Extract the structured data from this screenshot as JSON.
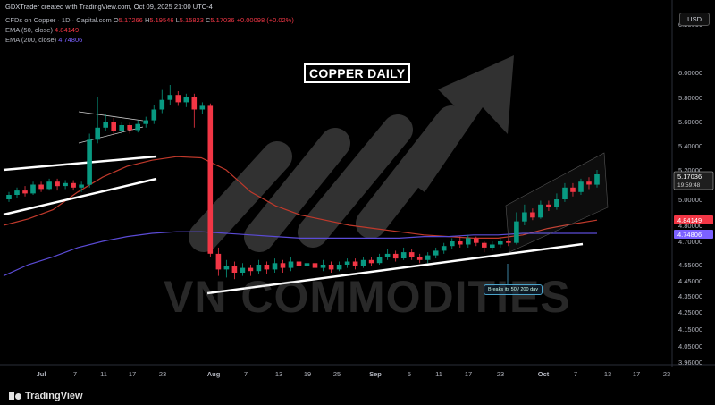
{
  "header": {
    "credit": "GDXTrader created with TradingView.com, Oct 09, 2025 21:00 UTC-4",
    "instrument": "CFDs on Copper · 1D · Capital.com",
    "ohlc": {
      "o_label": "O",
      "o": "5.17266",
      "h_label": "H",
      "h": "5.19546",
      "l_label": "L",
      "l": "5.15823",
      "c_label": "C",
      "c": "5.17036",
      "change": "+0.00098 (+0.02%)"
    },
    "ema50": {
      "label": "EMA (50, close)",
      "value": "4.84149"
    },
    "ema200": {
      "label": "EMA (200, close)",
      "value": "4.74806"
    }
  },
  "currency_button": "USD",
  "title": "COPPER DAILY",
  "watermark": "VN COMMODITIES",
  "annotation": "Breaks its 50 / 200 day",
  "brand": "TradingView",
  "colors": {
    "up": "#089981",
    "down": "#f23645",
    "ema50": "#c0392b",
    "ema200": "#5b4bd6",
    "trendline": "#ffffff",
    "background": "#000000"
  },
  "chart_data": {
    "type": "candlestick",
    "y_axis": {
      "ticks": [
        "6.20000",
        "6.00000",
        "5.80000",
        "5.60000",
        "5.40000",
        "5.20000",
        "5.00000",
        "4.80000",
        "4.70000",
        "4.55000",
        "4.45000",
        "4.35000",
        "4.25000",
        "4.15000",
        "4.05000",
        "3.96000"
      ]
    },
    "x_axis": {
      "ticks": [
        "Jul",
        "7",
        "11",
        "17",
        "23",
        "Aug",
        "7",
        "13",
        "19",
        "25",
        "Sep",
        "5",
        "11",
        "17",
        "23",
        "Oct",
        "7",
        "13",
        "17",
        "23"
      ]
    },
    "price_labels": [
      {
        "value": "5.17036",
        "sub": "19:59:48",
        "color": "#ffffff"
      },
      {
        "value": "4.84149",
        "color": "#f23645"
      },
      {
        "value": "4.74806",
        "color": "#7b61ff"
      }
    ],
    "candles": [
      [
        5.0,
        5.03,
        4.98,
        5.05
      ],
      [
        5.03,
        5.06,
        5.01,
        5.08
      ],
      [
        5.06,
        5.04,
        5.02,
        5.09
      ],
      [
        5.04,
        5.1,
        5.03,
        5.12
      ],
      [
        5.1,
        5.07,
        5.05,
        5.12
      ],
      [
        5.07,
        5.12,
        5.06,
        5.14
      ],
      [
        5.12,
        5.09,
        5.06,
        5.14
      ],
      [
        5.09,
        5.11,
        5.07,
        5.13
      ],
      [
        5.11,
        5.08,
        5.06,
        5.13
      ],
      [
        5.08,
        5.1,
        5.05,
        5.12
      ],
      [
        5.1,
        5.45,
        5.08,
        5.5
      ],
      [
        5.45,
        5.55,
        5.42,
        5.8
      ],
      [
        5.55,
        5.6,
        5.52,
        5.66
      ],
      [
        5.6,
        5.52,
        5.49,
        5.63
      ],
      [
        5.52,
        5.57,
        5.5,
        5.6
      ],
      [
        5.57,
        5.53,
        5.5,
        5.59
      ],
      [
        5.53,
        5.58,
        5.51,
        5.61
      ],
      [
        5.58,
        5.61,
        5.55,
        5.64
      ],
      [
        5.61,
        5.7,
        5.58,
        5.74
      ],
      [
        5.7,
        5.78,
        5.67,
        5.86
      ],
      [
        5.78,
        5.82,
        5.74,
        5.9
      ],
      [
        5.82,
        5.76,
        5.73,
        5.85
      ],
      [
        5.76,
        5.8,
        5.72,
        5.83
      ],
      [
        5.8,
        5.7,
        5.55,
        5.83
      ],
      [
        5.7,
        5.73,
        5.66,
        5.76
      ],
      [
        5.73,
        4.62,
        4.6,
        5.75
      ],
      [
        4.62,
        4.52,
        4.48,
        4.66
      ],
      [
        4.52,
        4.54,
        4.47,
        4.58
      ],
      [
        4.54,
        4.5,
        4.46,
        4.57
      ],
      [
        4.5,
        4.53,
        4.48,
        4.56
      ],
      [
        4.53,
        4.51,
        4.48,
        4.55
      ],
      [
        4.51,
        4.55,
        4.49,
        4.58
      ],
      [
        4.55,
        4.52,
        4.49,
        4.57
      ],
      [
        4.52,
        4.56,
        4.5,
        4.59
      ],
      [
        4.56,
        4.53,
        4.5,
        4.58
      ],
      [
        4.53,
        4.57,
        4.51,
        4.6
      ],
      [
        4.57,
        4.54,
        4.52,
        4.59
      ],
      [
        4.54,
        4.56,
        4.52,
        4.58
      ],
      [
        4.56,
        4.53,
        4.51,
        4.58
      ],
      [
        4.53,
        4.55,
        4.51,
        4.58
      ],
      [
        4.55,
        4.52,
        4.5,
        4.57
      ],
      [
        4.52,
        4.55,
        4.51,
        4.57
      ],
      [
        4.55,
        4.57,
        4.53,
        4.59
      ],
      [
        4.57,
        4.54,
        4.52,
        4.59
      ],
      [
        4.54,
        4.58,
        4.53,
        4.6
      ],
      [
        4.58,
        4.56,
        4.54,
        4.6
      ],
      [
        4.56,
        4.6,
        4.55,
        4.62
      ],
      [
        4.6,
        4.62,
        4.58,
        4.65
      ],
      [
        4.62,
        4.59,
        4.57,
        4.64
      ],
      [
        4.59,
        4.63,
        4.58,
        4.66
      ],
      [
        4.63,
        4.6,
        4.58,
        4.65
      ],
      [
        4.6,
        4.58,
        4.56,
        4.62
      ],
      [
        4.58,
        4.61,
        4.56,
        4.63
      ],
      [
        4.61,
        4.64,
        4.59,
        4.66
      ],
      [
        4.64,
        4.67,
        4.62,
        4.69
      ],
      [
        4.67,
        4.7,
        4.65,
        4.72
      ],
      [
        4.7,
        4.68,
        4.66,
        4.73
      ],
      [
        4.68,
        4.72,
        4.66,
        4.74
      ],
      [
        4.72,
        4.69,
        4.67,
        4.73
      ],
      [
        4.69,
        4.66,
        4.63,
        4.7
      ],
      [
        4.66,
        4.68,
        4.64,
        4.7
      ],
      [
        4.68,
        4.7,
        4.66,
        4.72
      ],
      [
        4.7,
        4.69,
        4.67,
        4.72
      ],
      [
        4.69,
        4.83,
        4.68,
        4.9
      ],
      [
        4.83,
        4.9,
        4.8,
        4.96
      ],
      [
        4.9,
        4.86,
        4.84,
        4.93
      ],
      [
        4.86,
        4.96,
        4.85,
        4.99
      ],
      [
        4.96,
        4.94,
        4.91,
        4.99
      ],
      [
        4.94,
        5.0,
        4.92,
        5.04
      ],
      [
        5.0,
        5.08,
        4.98,
        5.11
      ],
      [
        5.08,
        5.05,
        5.02,
        5.11
      ],
      [
        5.05,
        5.12,
        5.03,
        5.14
      ],
      [
        5.12,
        5.1,
        5.07,
        5.15
      ],
      [
        5.1,
        5.17,
        5.08,
        5.2
      ]
    ],
    "ema50_points": [
      4.8,
      4.85,
      4.92,
      5.05,
      5.15,
      5.23,
      5.28,
      5.31,
      5.3,
      5.2,
      5.05,
      4.95,
      4.88,
      4.84,
      4.8,
      4.78,
      4.76,
      4.74,
      4.73,
      4.72,
      4.72,
      4.74,
      4.78,
      4.81,
      4.84
    ],
    "ema200_points": [
      4.48,
      4.55,
      4.6,
      4.66,
      4.7,
      4.73,
      4.75,
      4.76,
      4.76,
      4.75,
      4.74,
      4.73,
      4.72,
      4.72,
      4.72,
      4.72,
      4.72,
      4.73,
      4.73,
      4.74,
      4.74,
      4.75,
      4.75,
      4.75,
      4.75
    ]
  }
}
